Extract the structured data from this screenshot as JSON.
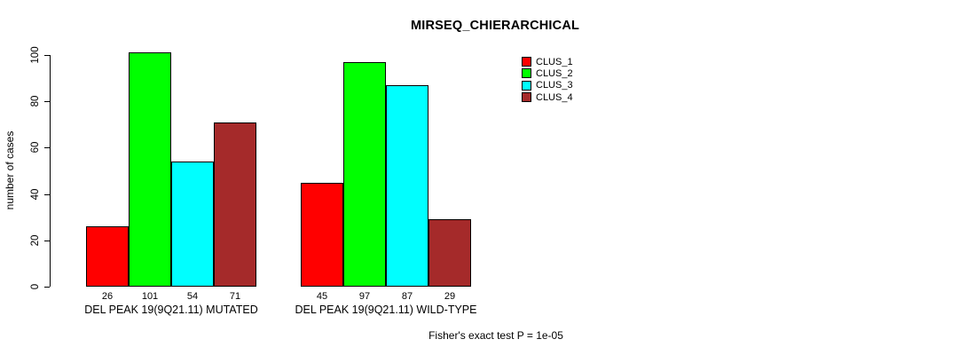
{
  "chart_data": {
    "type": "bar",
    "title": "MIRSEQ_CHIERARCHICAL",
    "ylabel": "number of cases",
    "xlabel": "",
    "ylim": [
      0,
      100
    ],
    "yticks": [
      0,
      20,
      40,
      60,
      80,
      100
    ],
    "grid": false,
    "legend_position": "top-right",
    "categories": [
      "DEL PEAK 19(9Q21.11) MUTATED",
      "DEL PEAK 19(9Q21.11) WILD-TYPE"
    ],
    "series": [
      {
        "name": "CLUS_1",
        "color": "#FF0000",
        "values": [
          26,
          45
        ]
      },
      {
        "name": "CLUS_2",
        "color": "#00FF00",
        "values": [
          101,
          97
        ]
      },
      {
        "name": "CLUS_3",
        "color": "#00FFFF",
        "values": [
          54,
          87
        ]
      },
      {
        "name": "CLUS_4",
        "color": "#A52A2A",
        "values": [
          71,
          29
        ]
      }
    ],
    "bar_value_labels": [
      [
        26,
        101,
        54,
        71
      ],
      [
        45,
        97,
        87,
        29
      ]
    ],
    "footnote": "Fisher's exact test P = 1e-05"
  }
}
